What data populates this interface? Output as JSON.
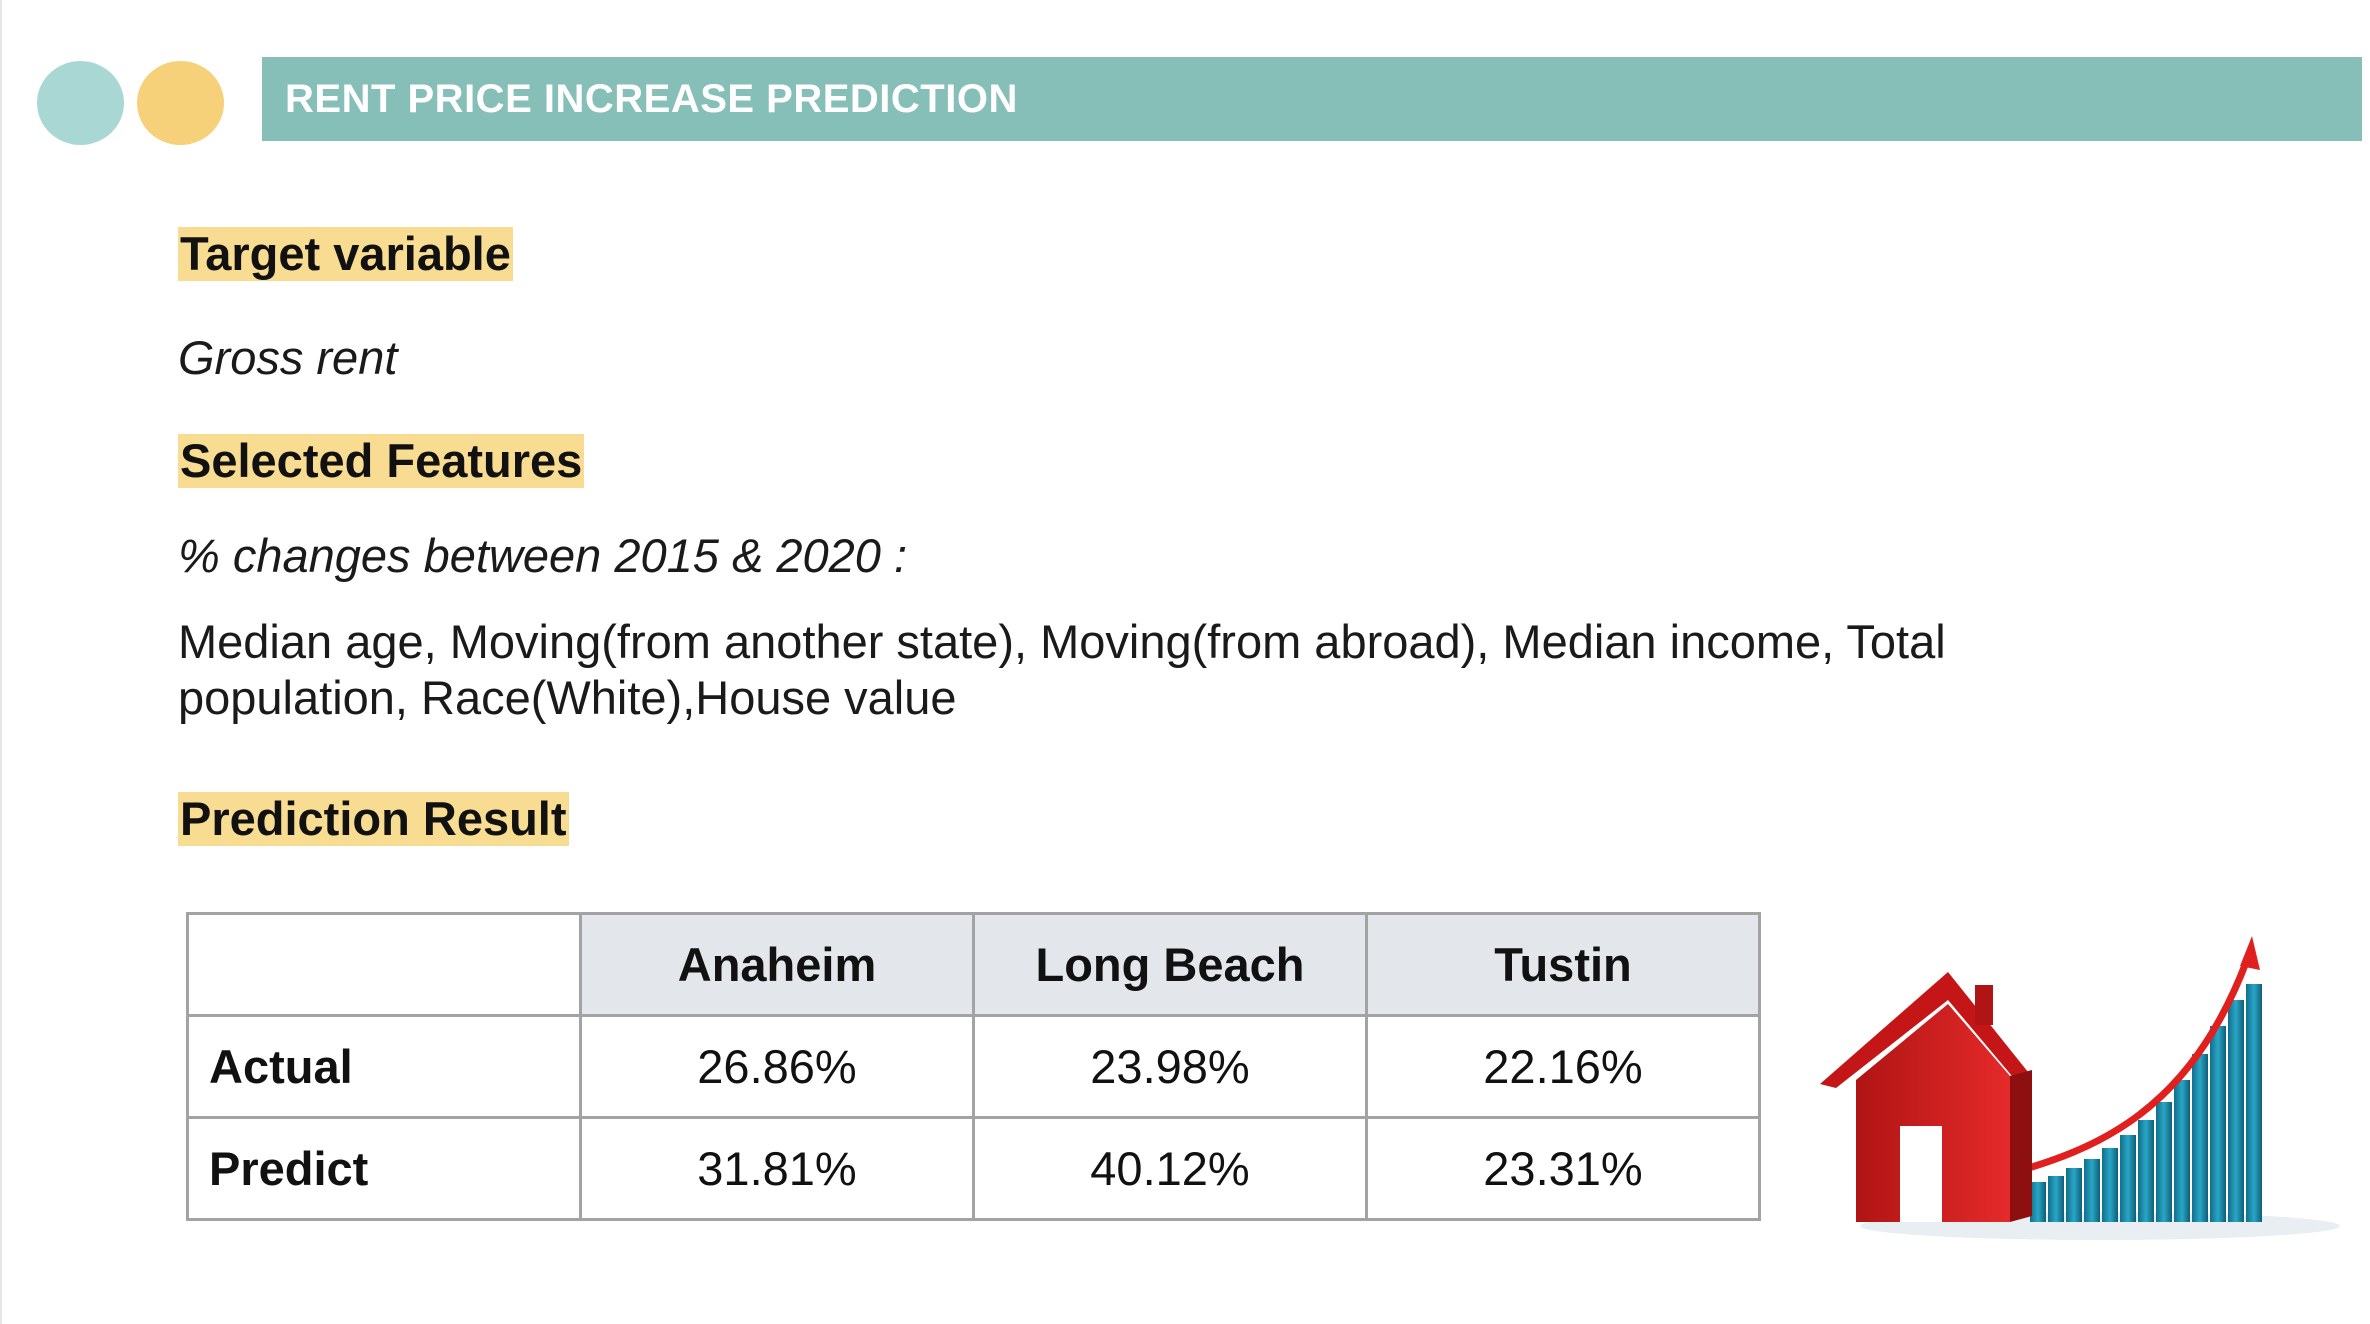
{
  "header": {
    "title": "RENT PRICE INCREASE PREDICTION"
  },
  "sections": {
    "target": {
      "heading": "Target variable",
      "value": "Gross rent"
    },
    "features": {
      "heading": "Selected Features",
      "intro": "% changes between 2015 & 2020 :",
      "list": "Median age, Moving(from another state), Moving(from abroad), Median income, Total population, Race(White),House value"
    },
    "result": {
      "heading": "Prediction Result"
    }
  },
  "table": {
    "columns": [
      "",
      "Anaheim",
      "Long Beach",
      "Tustin"
    ],
    "rows": [
      {
        "label": "Actual",
        "values": [
          "26.86%",
          "23.98%",
          "22.16%"
        ]
      },
      {
        "label": "Predict",
        "values": [
          "31.81%",
          "40.12%",
          "23.31%"
        ]
      }
    ]
  },
  "colors": {
    "header_bar": "#86bfb7",
    "highlight": "#f8dc91",
    "dot_teal": "#a9d8d4",
    "dot_yellow": "#f7d179",
    "table_header_bg": "#e3e7ec",
    "house_red": "#d81e1e",
    "bars_blue": "#1a88a8"
  },
  "illustration": {
    "icon": "house-rising-chart-icon"
  }
}
